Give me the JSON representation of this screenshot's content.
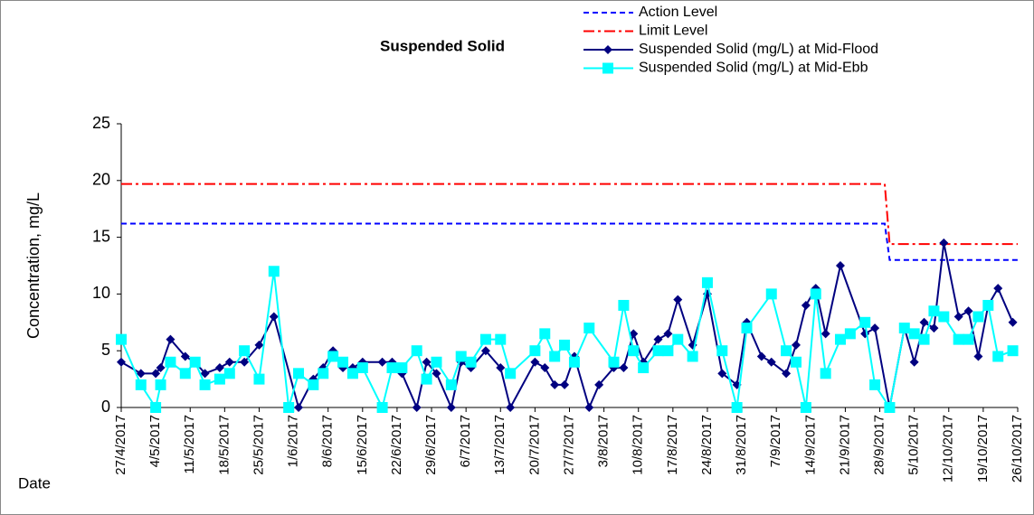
{
  "chart_data": {
    "type": "line",
    "title": "Suspended Solid",
    "y_label": "Concentration, mg/L",
    "x_label": "Date",
    "xlim": [
      "27/4/2017",
      "26/10/2017"
    ],
    "xticks": [
      "27/4/2017",
      "4/5/2017",
      "11/5/2017",
      "18/5/2017",
      "25/5/2017",
      "1/6/2017",
      "8/6/2017",
      "15/6/2017",
      "22/6/2017",
      "29/6/2017",
      "6/7/2017",
      "13/7/2017",
      "20/7/2017",
      "27/7/2017",
      "3/8/2017",
      "10/8/2017",
      "17/8/2017",
      "24/8/2017",
      "31/8/2017",
      "7/9/2017",
      "14/9/2017",
      "21/9/2017",
      "28/9/2017",
      "5/10/2017",
      "12/10/2017",
      "19/10/2017",
      "26/10/2017"
    ],
    "ylim": [
      0,
      25
    ],
    "yticks": [
      0,
      5,
      10,
      15,
      20,
      25
    ],
    "grid": false,
    "series": [
      {
        "name": "Action Level",
        "color": "#0000ff",
        "dash": "6 4",
        "marker": "none",
        "x": [
          "27/4/2017",
          "29/9/2017",
          "30/9/2017",
          "26/10/2017"
        ],
        "values": [
          16.2,
          16.2,
          13,
          13
        ]
      },
      {
        "name": "Limit Level",
        "color": "#ff0000",
        "dash": "12 4 3 4",
        "marker": "none",
        "x": [
          "27/4/2017",
          "29/9/2017",
          "30/9/2017",
          "26/10/2017"
        ],
        "values": [
          19.7,
          19.7,
          14.4,
          14.4
        ]
      },
      {
        "name": "Suspended Solid (mg/L) at Mid-Flood",
        "color": "#000080",
        "marker": "diamond",
        "x": [
          "27/4/2017",
          "1/5/2017",
          "4/5/2017",
          "5/5/2017",
          "7/5/2017",
          "10/5/2017",
          "12/5/2017",
          "14/5/2017",
          "17/5/2017",
          "19/5/2017",
          "22/5/2017",
          "25/5/2017",
          "28/5/2017",
          "2/6/2017",
          "5/6/2017",
          "7/6/2017",
          "9/6/2017",
          "11/6/2017",
          "13/6/2017",
          "15/6/2017",
          "19/6/2017",
          "21/6/2017",
          "23/6/2017",
          "26/6/2017",
          "28/6/2017",
          "30/6/2017",
          "3/7/2017",
          "5/7/2017",
          "7/7/2017",
          "10/7/2017",
          "13/7/2017",
          "15/7/2017",
          "20/7/2017",
          "22/7/2017",
          "24/7/2017",
          "26/7/2017",
          "28/7/2017",
          "31/7/2017",
          "2/8/2017",
          "5/8/2017",
          "7/8/2017",
          "9/8/2017",
          "11/8/2017",
          "14/8/2017",
          "16/8/2017",
          "18/8/2017",
          "21/8/2017",
          "24/8/2017",
          "27/8/2017",
          "30/8/2017",
          "1/9/2017",
          "4/9/2017",
          "6/9/2017",
          "9/9/2017",
          "11/9/2017",
          "13/9/2017",
          "15/9/2017",
          "17/9/2017",
          "20/9/2017",
          "25/9/2017",
          "27/9/2017",
          "30/9/2017",
          "3/10/2017",
          "5/10/2017",
          "7/10/2017",
          "9/10/2017",
          "11/10/2017",
          "14/10/2017",
          "16/10/2017",
          "18/10/2017",
          "20/10/2017",
          "22/10/2017",
          "25/10/2017"
        ],
        "values": [
          4,
          3,
          3,
          3.5,
          6,
          4.5,
          4,
          3,
          3.5,
          4,
          4,
          5.5,
          8,
          0,
          2.5,
          3.5,
          5,
          3.5,
          3.5,
          4,
          4,
          4,
          3,
          0,
          4,
          3,
          0,
          4,
          3.5,
          5,
          3.5,
          0,
          4,
          3.5,
          2,
          2,
          4.5,
          0,
          2,
          3.5,
          3.5,
          6.5,
          4,
          6,
          6.5,
          9.5,
          5.5,
          10,
          3,
          2,
          7.5,
          4.5,
          4,
          3,
          5.5,
          9,
          10.5,
          6.5,
          12.5,
          6.5,
          7,
          0,
          7,
          4,
          7.5,
          7,
          14.5,
          8,
          8.5,
          4.5,
          9,
          10.5,
          7.5
        ]
      },
      {
        "name": "Suspended Solid (mg/L) at Mid-Ebb",
        "color": "#00ffff",
        "marker": "square",
        "x": [
          "27/4/2017",
          "1/5/2017",
          "4/5/2017",
          "5/5/2017",
          "7/5/2017",
          "10/5/2017",
          "12/5/2017",
          "14/5/2017",
          "17/5/2017",
          "19/5/2017",
          "22/5/2017",
          "25/5/2017",
          "28/5/2017",
          "31/5/2017",
          "2/6/2017",
          "5/6/2017",
          "7/6/2017",
          "9/6/2017",
          "11/6/2017",
          "13/6/2017",
          "15/6/2017",
          "19/6/2017",
          "21/6/2017",
          "23/6/2017",
          "26/6/2017",
          "28/6/2017",
          "30/6/2017",
          "3/7/2017",
          "5/7/2017",
          "7/7/2017",
          "10/7/2017",
          "13/7/2017",
          "15/7/2017",
          "20/7/2017",
          "22/7/2017",
          "24/7/2017",
          "26/7/2017",
          "28/7/2017",
          "31/7/2017",
          "5/8/2017",
          "7/8/2017",
          "9/8/2017",
          "11/8/2017",
          "14/8/2017",
          "16/8/2017",
          "18/8/2017",
          "21/8/2017",
          "24/8/2017",
          "27/8/2017",
          "30/8/2017",
          "1/9/2017",
          "6/9/2017",
          "9/9/2017",
          "11/9/2017",
          "13/9/2017",
          "15/9/2017",
          "17/9/2017",
          "20/9/2017",
          "22/9/2017",
          "25/9/2017",
          "27/9/2017",
          "30/9/2017",
          "3/10/2017",
          "5/10/2017",
          "7/10/2017",
          "9/10/2017",
          "11/10/2017",
          "14/10/2017",
          "16/10/2017",
          "18/10/2017",
          "20/10/2017",
          "22/10/2017",
          "25/10/2017"
        ],
        "values": [
          6,
          2,
          0,
          2,
          4,
          3,
          4,
          2,
          2.5,
          3,
          5,
          2.5,
          12,
          0,
          3,
          2,
          3,
          4.5,
          4,
          3,
          3.5,
          0,
          3.5,
          3.5,
          5,
          2.5,
          4,
          2,
          4.5,
          4,
          6,
          6,
          3,
          5,
          6.5,
          4.5,
          5.5,
          4,
          7,
          4,
          9,
          5,
          3.5,
          5,
          5,
          6,
          4.5,
          11,
          5,
          0,
          7,
          10,
          5,
          4,
          0,
          10,
          3,
          6,
          6.5,
          7.5,
          2,
          0,
          7,
          6.5,
          6,
          8.5,
          8,
          6,
          6,
          8,
          9,
          4.5,
          5
        ]
      }
    ]
  }
}
